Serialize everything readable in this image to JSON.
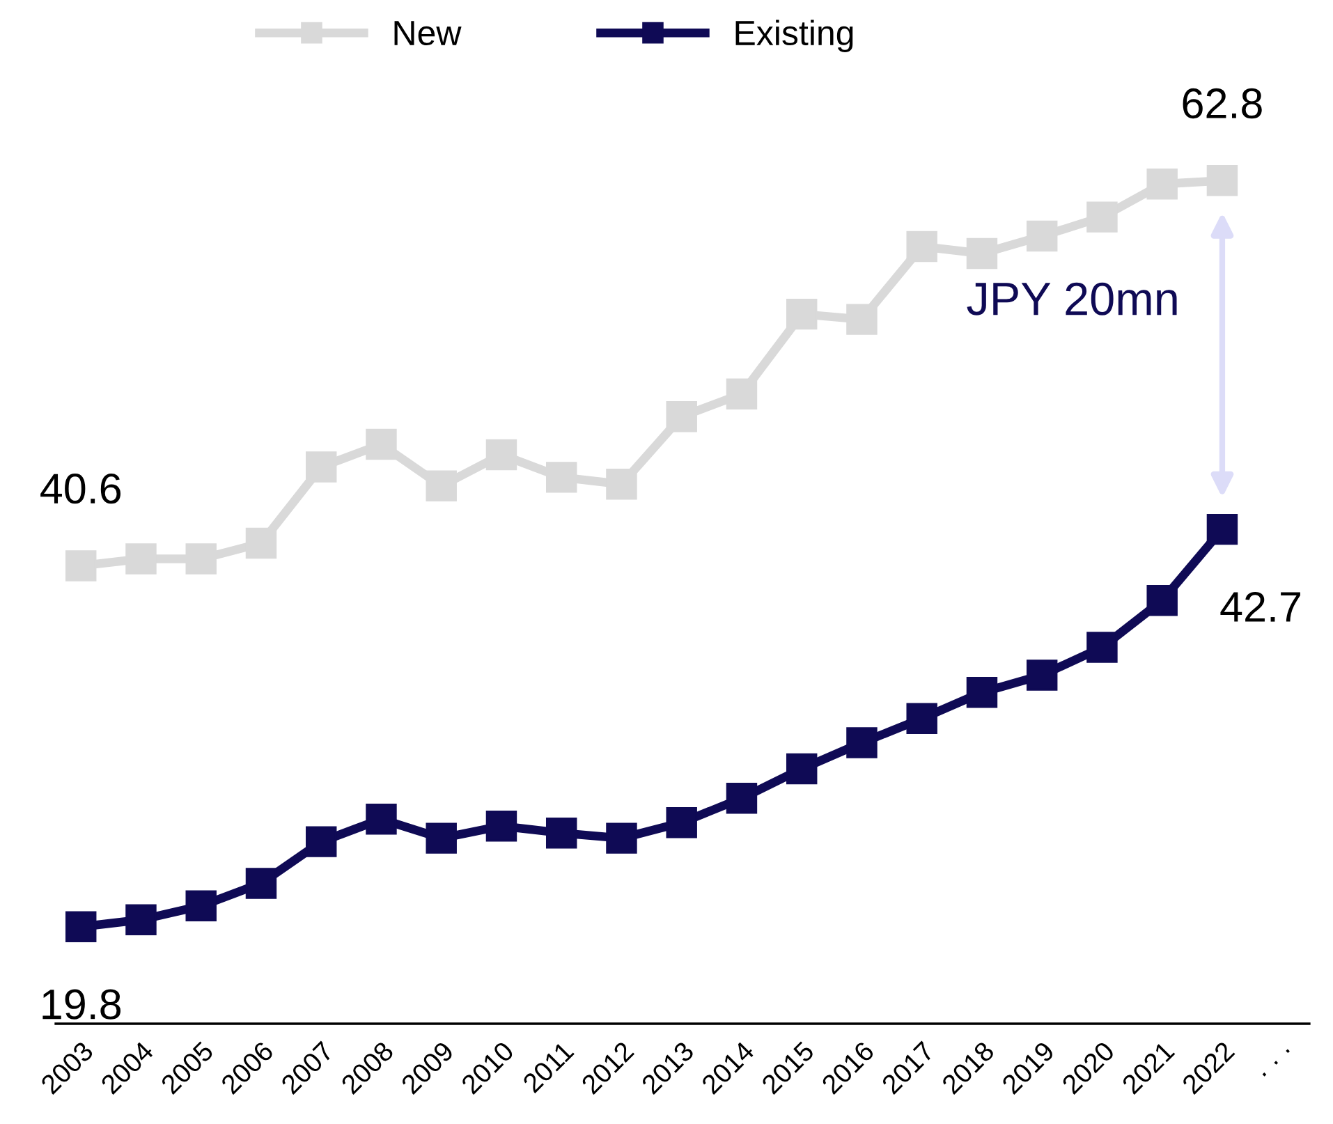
{
  "chart_data": {
    "type": "line",
    "categories": [
      "2003",
      "2004",
      "2005",
      "2006",
      "2007",
      "2008",
      "2009",
      "2010",
      "2011",
      "2012",
      "2013",
      "2014",
      "2015",
      "2016",
      "2017",
      "2018",
      "2019",
      "2020",
      "2021",
      "2022",
      "· · ·"
    ],
    "series": [
      {
        "name": "New",
        "color": "#d9d9d9",
        "values": [
          40.6,
          41.0,
          41.0,
          41.9,
          46.3,
          47.6,
          45.2,
          47.0,
          45.7,
          45.3,
          49.2,
          50.5,
          55.1,
          54.8,
          59.0,
          58.6,
          59.6,
          60.7,
          62.6,
          62.8,
          null
        ],
        "value_labels": [
          "40.6",
          null,
          null,
          null,
          null,
          null,
          null,
          null,
          null,
          null,
          null,
          null,
          null,
          null,
          null,
          null,
          null,
          null,
          null,
          "62.8",
          null
        ]
      },
      {
        "name": "Existing",
        "color": "#0f0a55",
        "values": [
          19.8,
          20.2,
          21.0,
          22.3,
          24.7,
          26.0,
          24.9,
          25.6,
          25.2,
          24.9,
          25.8,
          27.2,
          28.9,
          30.4,
          31.8,
          33.3,
          34.3,
          35.9,
          38.6,
          42.7,
          null
        ],
        "value_labels": [
          "19.8",
          null,
          null,
          null,
          null,
          null,
          null,
          null,
          null,
          null,
          null,
          null,
          null,
          null,
          null,
          null,
          null,
          null,
          null,
          "42.7",
          null
        ]
      }
    ],
    "tick_labels": "x",
    "marker": "square",
    "line_style": "solid",
    "legend": "top",
    "grid": false,
    "annotations": [
      "JPY 20mn"
    ]
  }
}
